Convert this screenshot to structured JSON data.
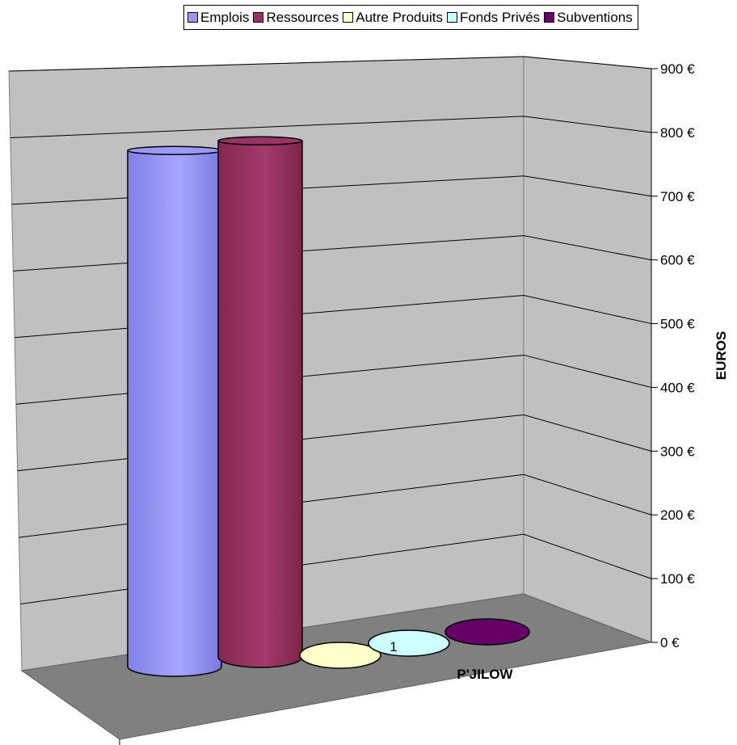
{
  "chart_data": {
    "type": "bar",
    "subtype": "3d-cylinder",
    "categories": [
      "1"
    ],
    "series": [
      {
        "name": "Emplois",
        "values": [
          835
        ],
        "color": "#9999ff"
      },
      {
        "name": "Ressources",
        "values": [
          835
        ],
        "color": "#993366"
      },
      {
        "name": "Autre Produits",
        "values": [
          0
        ],
        "color": "#ffffcc"
      },
      {
        "name": "Fonds Privés",
        "values": [
          0
        ],
        "color": "#ccffff"
      },
      {
        "name": "Subventions",
        "values": [
          0
        ],
        "color": "#660066"
      }
    ],
    "title": "",
    "xlabel": "P'JILOW",
    "ylabel": "EUROS",
    "ylim": [
      0,
      900
    ],
    "yticks": [
      "0 €",
      "100 €",
      "200 €",
      "300 €",
      "400 €",
      "500 €",
      "600 €",
      "700 €",
      "800 €",
      "900 €"
    ],
    "grid": true,
    "legend_position": "top"
  }
}
